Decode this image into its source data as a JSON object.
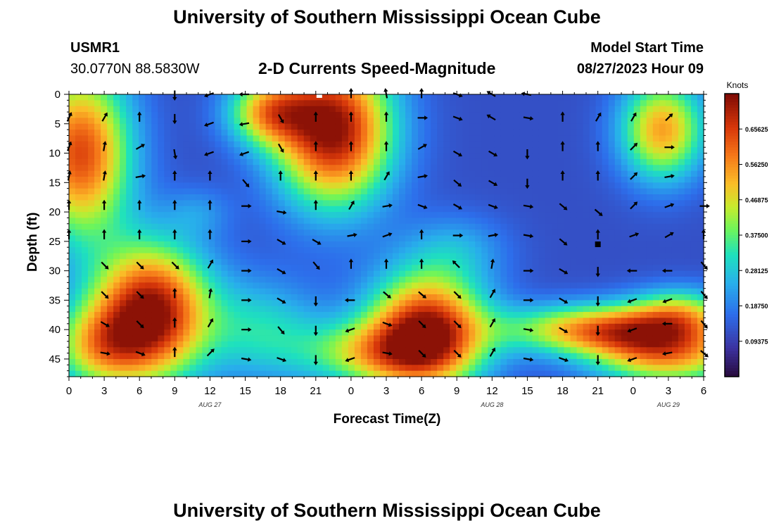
{
  "page": {
    "title_top": "University of Southern Mississippi Ocean Cube",
    "title_bottom": "University of Southern Mississippi Ocean Cube",
    "station_id": "USMR1",
    "station_coords": "30.0770N  88.5830W",
    "subtitle": "2-D Currents Speed-Magnitude",
    "model_start_label": "Model Start Time",
    "model_start_value": "08/27/2023 Hour 09"
  },
  "chart_data": {
    "type": "heatmap",
    "title": "2-D Currents Speed-Magnitude",
    "xlabel": "Forecast Time(Z)",
    "ylabel": "Depth (ft)",
    "x_tick_labels": [
      "0",
      "3",
      "6",
      "9",
      "12",
      "15",
      "18",
      "21",
      "0",
      "3",
      "6",
      "9",
      "12",
      "15",
      "18",
      "21",
      "0",
      "3",
      "6"
    ],
    "x_hours": [
      0,
      3,
      6,
      9,
      12,
      15,
      18,
      21,
      24,
      27,
      30,
      33,
      36,
      39,
      42,
      45,
      48,
      51,
      54
    ],
    "xlim": [
      0,
      54
    ],
    "date_labels": [
      {
        "text": "AUG 27",
        "hour": 12
      },
      {
        "text": "AUG 28",
        "hour": 36
      },
      {
        "text": "AUG 29",
        "hour": 51
      }
    ],
    "y_ticks": [
      0,
      5,
      10,
      15,
      20,
      25,
      30,
      35,
      40,
      45
    ],
    "ylim": [
      0,
      48
    ],
    "colorbar": {
      "title": "Knots",
      "tick_labels": [
        "0.65625",
        "0.56250",
        "0.46875",
        "0.37500",
        "0.28125",
        "0.18750",
        "0.09375"
      ],
      "tick_values": [
        0.65625,
        0.5625,
        0.46875,
        0.375,
        0.28125,
        0.1875,
        0.09375
      ],
      "range": [
        0,
        0.75
      ]
    },
    "speed_blobs": [
      {
        "t": 1.0,
        "d": 10,
        "st": 3.0,
        "sd": 10,
        "a": 0.52
      },
      {
        "t": 7.0,
        "d": 37,
        "st": 3.5,
        "sd": 8,
        "a": 0.62
      },
      {
        "t": 2.5,
        "d": 43,
        "st": 3.0,
        "sd": 5,
        "a": 0.3
      },
      {
        "t": 22.5,
        "d": 6,
        "st": 3.5,
        "sd": 9,
        "a": 0.62
      },
      {
        "t": 17.0,
        "d": 3,
        "st": 2.5,
        "sd": 4,
        "a": 0.35
      },
      {
        "t": 30.5,
        "d": 40,
        "st": 3.5,
        "sd": 7,
        "a": 0.58
      },
      {
        "t": 26.0,
        "d": 44,
        "st": 4.5,
        "sd": 4,
        "a": 0.3
      },
      {
        "t": 45.0,
        "d": 40,
        "st": 5.5,
        "sd": 3.0,
        "a": 0.42
      },
      {
        "t": 51.0,
        "d": 44,
        "st": 4.5,
        "sd": 4,
        "a": 0.42
      },
      {
        "t": 52.0,
        "d": 37,
        "st": 3.0,
        "sd": 3,
        "a": 0.25
      },
      {
        "t": 50.5,
        "d": 6,
        "st": 2.5,
        "sd": 6,
        "a": 0.42
      },
      {
        "t": 16.5,
        "d": 40,
        "st": 3.5,
        "sd": 6,
        "a": 0.18
      },
      {
        "t": 33.0,
        "d": 26,
        "st": 3.0,
        "sd": 4,
        "a": 0.1
      },
      {
        "t": 11.0,
        "d": 20,
        "st": 2.0,
        "sd": 3,
        "a": 0.08
      }
    ],
    "base_speed": 0.12,
    "arrows": [
      {
        "t": 0,
        "d": 4,
        "ang": 65
      },
      {
        "t": 3,
        "d": 4,
        "ang": 60
      },
      {
        "t": 6,
        "d": 4,
        "ang": 90
      },
      {
        "t": 9,
        "d": 0,
        "ang": -90
      },
      {
        "t": 12,
        "d": 0,
        "ang": 200
      },
      {
        "t": 15,
        "d": 0,
        "ang": 180
      },
      {
        "t": 24,
        "d": 0,
        "ang": 90
      },
      {
        "t": 27,
        "d": 0,
        "ang": 100
      },
      {
        "t": 30,
        "d": 0,
        "ang": 90
      },
      {
        "t": 33,
        "d": 0,
        "ang": -20
      },
      {
        "t": 36,
        "d": 0,
        "ang": 150
      },
      {
        "t": 39,
        "d": 0,
        "ang": 170
      },
      {
        "t": 9,
        "d": 4,
        "ang": -90
      },
      {
        "t": 12,
        "d": 5,
        "ang": 200
      },
      {
        "t": 15,
        "d": 5,
        "ang": 190
      },
      {
        "t": 18,
        "d": 4,
        "ang": -60
      },
      {
        "t": 21,
        "d": 4,
        "ang": 90
      },
      {
        "t": 24,
        "d": 4,
        "ang": 90
      },
      {
        "t": 27,
        "d": 4,
        "ang": 90
      },
      {
        "t": 30,
        "d": 4,
        "ang": 0
      },
      {
        "t": 33,
        "d": 4,
        "ang": -20
      },
      {
        "t": 36,
        "d": 4,
        "ang": 150
      },
      {
        "t": 39,
        "d": 4,
        "ang": -10
      },
      {
        "t": 42,
        "d": 4,
        "ang": 90
      },
      {
        "t": 45,
        "d": 4,
        "ang": 60
      },
      {
        "t": 48,
        "d": 4,
        "ang": 60
      },
      {
        "t": 51,
        "d": 4,
        "ang": 45
      },
      {
        "t": 0,
        "d": 9,
        "ang": 70
      },
      {
        "t": 3,
        "d": 9,
        "ang": 80
      },
      {
        "t": 6,
        "d": 9,
        "ang": 30
      },
      {
        "t": 9,
        "d": 10,
        "ang": -80
      },
      {
        "t": 12,
        "d": 10,
        "ang": 200
      },
      {
        "t": 15,
        "d": 10,
        "ang": 200
      },
      {
        "t": 18,
        "d": 9,
        "ang": -60
      },
      {
        "t": 21,
        "d": 9,
        "ang": 90
      },
      {
        "t": 24,
        "d": 9,
        "ang": 90
      },
      {
        "t": 27,
        "d": 9,
        "ang": 90
      },
      {
        "t": 30,
        "d": 9,
        "ang": 30
      },
      {
        "t": 33,
        "d": 10,
        "ang": -30
      },
      {
        "t": 36,
        "d": 10,
        "ang": -30
      },
      {
        "t": 39,
        "d": 10,
        "ang": -90
      },
      {
        "t": 42,
        "d": 9,
        "ang": 90
      },
      {
        "t": 45,
        "d": 9,
        "ang": 90
      },
      {
        "t": 48,
        "d": 9,
        "ang": 45
      },
      {
        "t": 51,
        "d": 9,
        "ang": 0
      },
      {
        "t": 0,
        "d": 14,
        "ang": 80
      },
      {
        "t": 3,
        "d": 14,
        "ang": 80
      },
      {
        "t": 6,
        "d": 14,
        "ang": 10
      },
      {
        "t": 9,
        "d": 14,
        "ang": 90
      },
      {
        "t": 12,
        "d": 14,
        "ang": 90
      },
      {
        "t": 15,
        "d": 15,
        "ang": -50
      },
      {
        "t": 18,
        "d": 14,
        "ang": 90
      },
      {
        "t": 21,
        "d": 14,
        "ang": 90
      },
      {
        "t": 24,
        "d": 14,
        "ang": 90
      },
      {
        "t": 27,
        "d": 14,
        "ang": 60
      },
      {
        "t": 30,
        "d": 14,
        "ang": 10
      },
      {
        "t": 33,
        "d": 15,
        "ang": -40
      },
      {
        "t": 36,
        "d": 15,
        "ang": -30
      },
      {
        "t": 39,
        "d": 15,
        "ang": -90
      },
      {
        "t": 42,
        "d": 14,
        "ang": 90
      },
      {
        "t": 45,
        "d": 14,
        "ang": 90
      },
      {
        "t": 48,
        "d": 14,
        "ang": 45
      },
      {
        "t": 51,
        "d": 14,
        "ang": 10
      },
      {
        "t": 0,
        "d": 19,
        "ang": 90
      },
      {
        "t": 3,
        "d": 19,
        "ang": 90
      },
      {
        "t": 6,
        "d": 19,
        "ang": 90
      },
      {
        "t": 9,
        "d": 19,
        "ang": 90
      },
      {
        "t": 12,
        "d": 19,
        "ang": 90
      },
      {
        "t": 15,
        "d": 19,
        "ang": 0
      },
      {
        "t": 18,
        "d": 20,
        "ang": -10
      },
      {
        "t": 21,
        "d": 19,
        "ang": 90
      },
      {
        "t": 24,
        "d": 19,
        "ang": 60
      },
      {
        "t": 27,
        "d": 19,
        "ang": 10
      },
      {
        "t": 30,
        "d": 19,
        "ang": -20
      },
      {
        "t": 33,
        "d": 19,
        "ang": -30
      },
      {
        "t": 36,
        "d": 19,
        "ang": -20
      },
      {
        "t": 39,
        "d": 19,
        "ang": -10
      },
      {
        "t": 42,
        "d": 19,
        "ang": -40
      },
      {
        "t": 45,
        "d": 20,
        "ang": -40
      },
      {
        "t": 48,
        "d": 19,
        "ang": 45
      },
      {
        "t": 51,
        "d": 19,
        "ang": 20
      },
      {
        "t": 54,
        "d": 19,
        "ang": 0
      },
      {
        "t": 0,
        "d": 24,
        "ang": 90
      },
      {
        "t": 3,
        "d": 24,
        "ang": 90
      },
      {
        "t": 6,
        "d": 24,
        "ang": 90
      },
      {
        "t": 9,
        "d": 24,
        "ang": 90
      },
      {
        "t": 12,
        "d": 24,
        "ang": 90
      },
      {
        "t": 15,
        "d": 25,
        "ang": 0
      },
      {
        "t": 18,
        "d": 25,
        "ang": -30
      },
      {
        "t": 21,
        "d": 25,
        "ang": -30
      },
      {
        "t": 24,
        "d": 24,
        "ang": 10
      },
      {
        "t": 27,
        "d": 24,
        "ang": 20
      },
      {
        "t": 30,
        "d": 24,
        "ang": 90
      },
      {
        "t": 33,
        "d": 24,
        "ang": 0
      },
      {
        "t": 36,
        "d": 24,
        "ang": 10
      },
      {
        "t": 39,
        "d": 24,
        "ang": -10
      },
      {
        "t": 42,
        "d": 25,
        "ang": -40
      },
      {
        "t": 45,
        "d": 24,
        "ang": 90
      },
      {
        "t": 48,
        "d": 24,
        "ang": 20
      },
      {
        "t": 51,
        "d": 24,
        "ang": 30
      },
      {
        "t": 54,
        "d": 24,
        "ang": 90
      },
      {
        "t": 3,
        "d": 29,
        "ang": -45
      },
      {
        "t": 6,
        "d": 29,
        "ang": -45
      },
      {
        "t": 9,
        "d": 29,
        "ang": -45
      },
      {
        "t": 12,
        "d": 29,
        "ang": 60
      },
      {
        "t": 15,
        "d": 30,
        "ang": 0
      },
      {
        "t": 18,
        "d": 30,
        "ang": -30
      },
      {
        "t": 21,
        "d": 29,
        "ang": -50
      },
      {
        "t": 24,
        "d": 29,
        "ang": 90
      },
      {
        "t": 27,
        "d": 29,
        "ang": 90
      },
      {
        "t": 30,
        "d": 29,
        "ang": 90
      },
      {
        "t": 33,
        "d": 29,
        "ang": 135
      },
      {
        "t": 36,
        "d": 29,
        "ang": 80
      },
      {
        "t": 39,
        "d": 30,
        "ang": 0
      },
      {
        "t": 42,
        "d": 30,
        "ang": -30
      },
      {
        "t": 45,
        "d": 30,
        "ang": -90
      },
      {
        "t": 48,
        "d": 30,
        "ang": 180
      },
      {
        "t": 51,
        "d": 30,
        "ang": 180
      },
      {
        "t": 54,
        "d": 29,
        "ang": -50
      },
      {
        "t": 3,
        "d": 34,
        "ang": -45
      },
      {
        "t": 6,
        "d": 34,
        "ang": -45
      },
      {
        "t": 9,
        "d": 34,
        "ang": 90
      },
      {
        "t": 12,
        "d": 34,
        "ang": 80
      },
      {
        "t": 15,
        "d": 35,
        "ang": 0
      },
      {
        "t": 18,
        "d": 35,
        "ang": -30
      },
      {
        "t": 21,
        "d": 35,
        "ang": -90
      },
      {
        "t": 24,
        "d": 35,
        "ang": 180
      },
      {
        "t": 27,
        "d": 34,
        "ang": -40
      },
      {
        "t": 30,
        "d": 34,
        "ang": -40
      },
      {
        "t": 33,
        "d": 34,
        "ang": -45
      },
      {
        "t": 36,
        "d": 34,
        "ang": 60
      },
      {
        "t": 39,
        "d": 35,
        "ang": 0
      },
      {
        "t": 42,
        "d": 35,
        "ang": -30
      },
      {
        "t": 45,
        "d": 35,
        "ang": -90
      },
      {
        "t": 48,
        "d": 35,
        "ang": 200
      },
      {
        "t": 51,
        "d": 35,
        "ang": 200
      },
      {
        "t": 54,
        "d": 34,
        "ang": -50
      },
      {
        "t": 3,
        "d": 39,
        "ang": -30
      },
      {
        "t": 6,
        "d": 39,
        "ang": -45
      },
      {
        "t": 9,
        "d": 39,
        "ang": 90
      },
      {
        "t": 12,
        "d": 39,
        "ang": 60
      },
      {
        "t": 15,
        "d": 40,
        "ang": 0
      },
      {
        "t": 18,
        "d": 40,
        "ang": -50
      },
      {
        "t": 21,
        "d": 40,
        "ang": -90
      },
      {
        "t": 24,
        "d": 40,
        "ang": 200
      },
      {
        "t": 27,
        "d": 39,
        "ang": -20
      },
      {
        "t": 30,
        "d": 39,
        "ang": -45
      },
      {
        "t": 33,
        "d": 39,
        "ang": -45
      },
      {
        "t": 36,
        "d": 39,
        "ang": 60
      },
      {
        "t": 39,
        "d": 40,
        "ang": -10
      },
      {
        "t": 42,
        "d": 40,
        "ang": -30
      },
      {
        "t": 45,
        "d": 40,
        "ang": -90
      },
      {
        "t": 48,
        "d": 40,
        "ang": 200
      },
      {
        "t": 51,
        "d": 39,
        "ang": 180
      },
      {
        "t": 54,
        "d": 39,
        "ang": -50
      },
      {
        "t": 3,
        "d": 44,
        "ang": -10
      },
      {
        "t": 6,
        "d": 44,
        "ang": -20
      },
      {
        "t": 9,
        "d": 44,
        "ang": 90
      },
      {
        "t": 12,
        "d": 44,
        "ang": 45
      },
      {
        "t": 15,
        "d": 45,
        "ang": -10
      },
      {
        "t": 18,
        "d": 45,
        "ang": -20
      },
      {
        "t": 21,
        "d": 45,
        "ang": -90
      },
      {
        "t": 24,
        "d": 45,
        "ang": 200
      },
      {
        "t": 27,
        "d": 44,
        "ang": -10
      },
      {
        "t": 30,
        "d": 44,
        "ang": -45
      },
      {
        "t": 33,
        "d": 44,
        "ang": -45
      },
      {
        "t": 36,
        "d": 44,
        "ang": 60
      },
      {
        "t": 39,
        "d": 45,
        "ang": -10
      },
      {
        "t": 42,
        "d": 45,
        "ang": -20
      },
      {
        "t": 45,
        "d": 45,
        "ang": -90
      },
      {
        "t": 48,
        "d": 45,
        "ang": 200
      },
      {
        "t": 51,
        "d": 44,
        "ang": 190
      },
      {
        "t": 54,
        "d": 44,
        "ang": -40
      }
    ],
    "markers": [
      {
        "t": 21.3,
        "d": 0,
        "kind": "white"
      },
      {
        "t": 45.0,
        "d": 25.5,
        "kind": "black"
      }
    ]
  }
}
